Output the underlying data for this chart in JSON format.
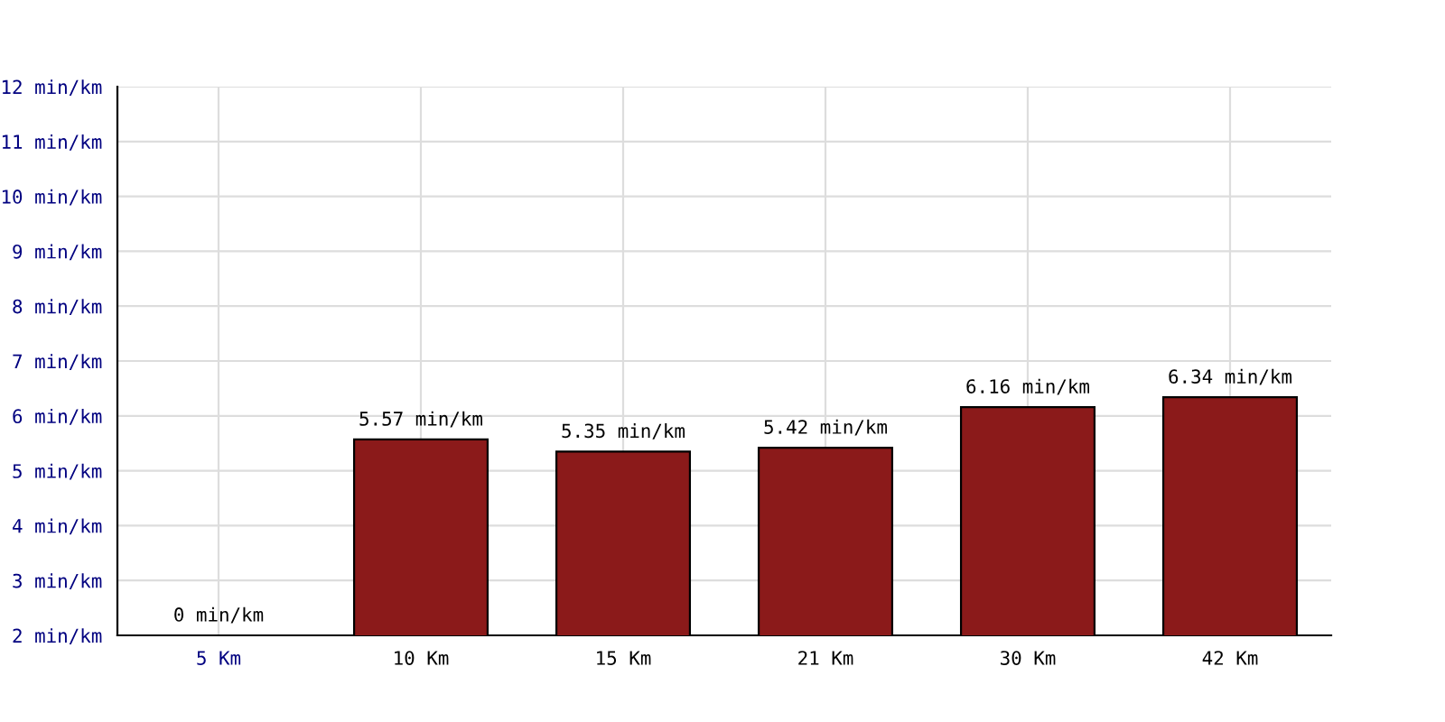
{
  "chart_data": {
    "type": "bar",
    "categories": [
      "5 Km",
      "10 Km",
      "15 Km",
      "21 Km",
      "30 Km",
      "42 Km"
    ],
    "values": [
      null,
      5.57,
      5.35,
      5.42,
      6.16,
      6.34
    ],
    "value_labels": [
      "0 min/km",
      "5.57 min/km",
      "5.35 min/km",
      "5.42 min/km",
      "6.16 min/km",
      "6.34 min/km"
    ],
    "color": "#8b1a1a",
    "ylim": [
      2,
      12
    ],
    "yticks": [
      {
        "value": 2,
        "label": "2 min/km"
      },
      {
        "value": 3,
        "label": "3 min/km"
      },
      {
        "value": 4,
        "label": "4 min/km"
      },
      {
        "value": 5,
        "label": "5 min/km"
      },
      {
        "value": 6,
        "label": "6 min/km"
      },
      {
        "value": 7,
        "label": "7 min/km"
      },
      {
        "value": 8,
        "label": "8 min/km"
      },
      {
        "value": 9,
        "label": "9 min/km"
      },
      {
        "value": 10,
        "label": "10 min/km"
      },
      {
        "value": 11,
        "label": "11 min/km"
      },
      {
        "value": 12,
        "label": "12 min/km"
      }
    ],
    "grid": true,
    "legend": false
  }
}
